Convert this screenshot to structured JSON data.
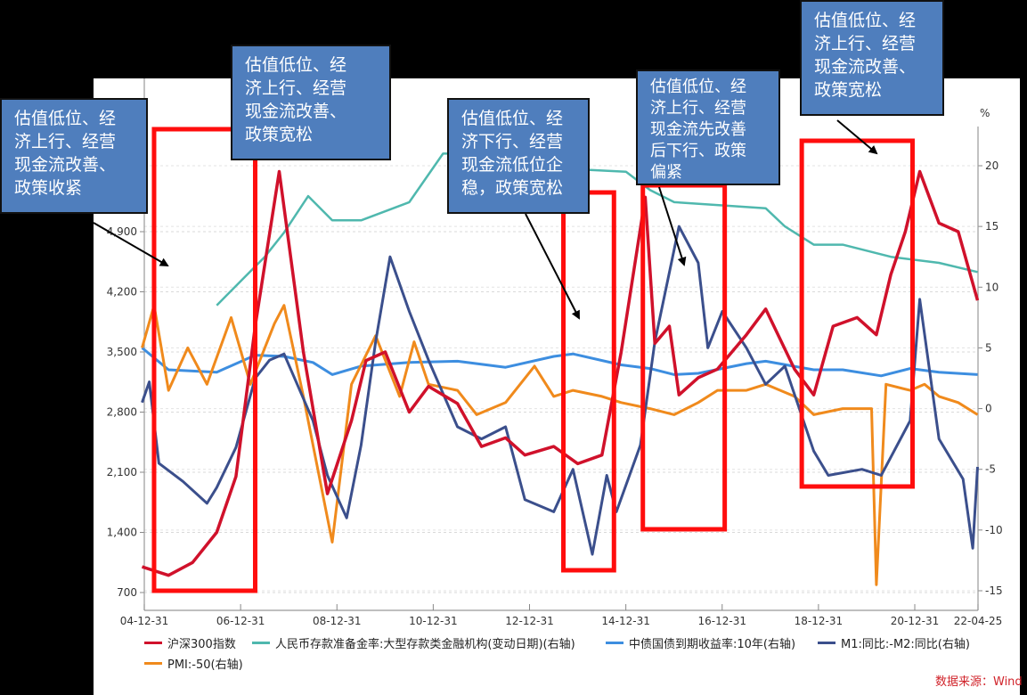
{
  "chart_data": {
    "type": "line",
    "title": "",
    "x_tick_labels": [
      "04-12-31",
      "06-12-31",
      "08-12-31",
      "10-12-31",
      "12-12-31",
      "14-12-31",
      "16-12-31",
      "18-12-31",
      "20-12-31",
      "22-04-25"
    ],
    "left_axis": {
      "label": "",
      "ticks": [
        700,
        1400,
        2100,
        2800,
        3500,
        4200,
        4900
      ],
      "tick_labels": [
        "700",
        "1,400",
        "2,100",
        "2,800",
        "3,500",
        "4,200",
        "4,900"
      ],
      "range": [
        700,
        5600
      ]
    },
    "right_axis": {
      "label": "%",
      "ticks": [
        -15,
        -10,
        -5,
        0,
        5,
        10,
        15,
        20
      ],
      "range": [
        -15,
        22
      ]
    },
    "grid": true,
    "legend_position": "bottom",
    "series": [
      {
        "name": "沪深300指数",
        "axis": "left",
        "color": "#d0112b",
        "x": [
          2004.95,
          2005.5,
          2006.0,
          2006.5,
          2006.9,
          2007.3,
          2007.8,
          2008.3,
          2008.8,
          2009.3,
          2009.6,
          2010.0,
          2010.5,
          2010.9,
          2011.5,
          2012.0,
          2012.5,
          2012.9,
          2013.5,
          2014.0,
          2014.5,
          2014.9,
          2015.4,
          2015.6,
          2015.9,
          2016.1,
          2016.5,
          2016.9,
          2017.5,
          2017.9,
          2018.5,
          2018.9,
          2019.3,
          2019.8,
          2020.2,
          2020.5,
          2020.8,
          2021.1,
          2021.5,
          2021.9,
          2022.3
        ],
        "values": [
          1000,
          900,
          1050,
          1400,
          2050,
          3800,
          5600,
          3500,
          1850,
          2700,
          3400,
          3500,
          2800,
          3100,
          2900,
          2400,
          2500,
          2300,
          2400,
          2200,
          2300,
          3500,
          5300,
          3600,
          3800,
          3000,
          3200,
          3300,
          3700,
          4000,
          3300,
          3000,
          3800,
          3900,
          3700,
          4400,
          4900,
          5600,
          5000,
          4900,
          4100
        ]
      },
      {
        "name": "人民币存款准备金率:大型存款类金融机构(变动日期)(右轴)",
        "axis": "right",
        "color": "#4fb8ae",
        "x": [
          2006.5,
          2007.5,
          2007.9,
          2008.4,
          2008.9,
          2009.5,
          2010.5,
          2011.2,
          2011.9,
          2012.5,
          2015.0,
          2015.5,
          2016.0,
          2017.9,
          2018.3,
          2018.9,
          2019.5,
          2020.5,
          2021.5,
          2022.3
        ],
        "values": [
          8.5,
          12.5,
          14.5,
          17.5,
          15.5,
          15.5,
          17.0,
          21.0,
          21.0,
          20.0,
          19.5,
          18.0,
          17.0,
          16.5,
          15.0,
          13.5,
          13.5,
          12.5,
          12.0,
          11.25
        ]
      },
      {
        "name": "中债国债到期收益率:10年(右轴)",
        "axis": "right",
        "color": "#3d8ee0",
        "x": [
          2004.95,
          2005.5,
          2006.5,
          2007.3,
          2007.9,
          2008.5,
          2008.9,
          2009.5,
          2010.5,
          2011.5,
          2012.5,
          2013.5,
          2013.9,
          2014.9,
          2015.5,
          2016.0,
          2016.5,
          2017.5,
          2017.9,
          2018.9,
          2019.5,
          2020.3,
          2020.9,
          2021.5,
          2022.3
        ],
        "values": [
          5.0,
          3.2,
          3.0,
          4.4,
          4.3,
          3.8,
          2.8,
          3.5,
          3.8,
          3.9,
          3.4,
          4.3,
          4.5,
          3.6,
          3.3,
          2.8,
          2.9,
          3.7,
          3.9,
          3.2,
          3.2,
          2.7,
          3.3,
          3.0,
          2.8
        ]
      },
      {
        "name": "M1:同比:-M2:同比(右轴)",
        "axis": "right",
        "color": "#3b4f8c",
        "x": [
          2004.95,
          2005.1,
          2005.3,
          2005.8,
          2006.3,
          2006.5,
          2006.9,
          2007.3,
          2007.6,
          2007.9,
          2008.5,
          2008.8,
          2009.2,
          2009.5,
          2009.8,
          2010.1,
          2010.5,
          2010.9,
          2011.5,
          2012.0,
          2012.5,
          2012.9,
          2013.5,
          2013.9,
          2014.3,
          2014.6,
          2014.8,
          2015.3,
          2015.6,
          2016.1,
          2016.5,
          2016.7,
          2017.0,
          2017.5,
          2017.9,
          2018.3,
          2018.9,
          2019.2,
          2019.9,
          2020.3,
          2020.9,
          2021.1,
          2021.5,
          2022.0,
          2022.2,
          2022.3
        ],
        "values": [
          0.5,
          2.2,
          -4.5,
          -6.0,
          -7.8,
          -6.5,
          -3.2,
          2.5,
          4.0,
          4.5,
          -1.0,
          -5.5,
          -9.0,
          -3.0,
          5.5,
          12.5,
          8.0,
          4.0,
          -1.5,
          -2.5,
          -1.5,
          -7.5,
          -8.5,
          -5.0,
          -12.0,
          -5.5,
          -8.5,
          -3.0,
          5.5,
          15.0,
          12.0,
          5.0,
          8.0,
          5.0,
          2.0,
          3.5,
          -3.5,
          -5.5,
          -5.0,
          -5.5,
          -1.0,
          9.0,
          -2.5,
          -5.8,
          -11.5,
          -4.8
        ]
      },
      {
        "name": "PMI:-50(右轴)",
        "axis": "right",
        "color": "#f08a1c",
        "x": [
          2004.95,
          2005.2,
          2005.5,
          2005.9,
          2006.3,
          2006.8,
          2007.2,
          2007.7,
          2007.9,
          2008.3,
          2008.9,
          2009.3,
          2009.8,
          2010.3,
          2010.6,
          2010.9,
          2011.5,
          2011.9,
          2012.5,
          2013.1,
          2013.5,
          2013.9,
          2014.5,
          2014.9,
          2015.5,
          2016.0,
          2016.5,
          2016.9,
          2017.5,
          2017.9,
          2018.5,
          2018.9,
          2019.5,
          2020.1,
          2020.2,
          2020.4,
          2020.9,
          2021.2,
          2021.5,
          2021.9,
          2022.3
        ],
        "values": [
          5.0,
          8.5,
          1.5,
          5.0,
          2.0,
          7.5,
          2.0,
          7.0,
          8.5,
          1.0,
          -11.0,
          2.0,
          6.0,
          1.0,
          5.5,
          2.0,
          1.5,
          -0.5,
          0.5,
          3.5,
          1.0,
          1.5,
          1.0,
          0.5,
          0.0,
          -0.5,
          0.5,
          1.5,
          1.5,
          2.0,
          1.0,
          -0.5,
          0.0,
          0.0,
          -14.5,
          2.0,
          1.5,
          2.0,
          1.0,
          0.5,
          -0.5
        ]
      }
    ],
    "highlight_boxes": [
      {
        "x_from": 2005.2,
        "x_to": 2007.3
      },
      {
        "x_from": 2013.7,
        "x_to": 2014.75
      },
      {
        "x_from": 2015.35,
        "x_to": 2017.05
      },
      {
        "x_from": 2018.65,
        "x_to": 2020.95
      }
    ],
    "annotations": [
      "估值低位、经济上行、经营现金流改善、政策收紧",
      "估值低位、经济上行、经营现金流改善、政策宽松",
      "估值低位、经济下行、经营现金流低位企稳，政策宽松",
      "估值低位、经济上行、经营现金流先改善后下行、政策偏紧",
      "估值低位、经济上行、经营现金流改善、政策宽松"
    ]
  },
  "legend": [
    {
      "label": "沪深300指数",
      "color": "#d0112b"
    },
    {
      "label": "人民币存款准备金率:大型存款类金融机构(变动日期)(右轴)",
      "color": "#4fb8ae"
    },
    {
      "label": "中债国债到期收益率:10年(右轴)",
      "color": "#3d8ee0"
    },
    {
      "label": "M1:同比:-M2:同比(右轴)",
      "color": "#3b4f8c"
    },
    {
      "label": "PMI:-50(右轴)",
      "color": "#f08a1c"
    }
  ],
  "notes": [
    "估值低位、经\n济上行、经营\n现金流改善、\n政策收紧",
    "估值低位、经\n济上行、经营\n现金流改善、\n政策宽松",
    "估值低位、经\n济下行、经营\n现金流低位企\n稳，政策宽松",
    "估值低位、经\n济上行、经营\n现金流先改善\n后下行、政策\n偏紧",
    "估值低位、经\n济上行、经营\n现金流改善、\n政策宽松"
  ],
  "right_axis_unit": "%",
  "source": "数据来源：Wind"
}
